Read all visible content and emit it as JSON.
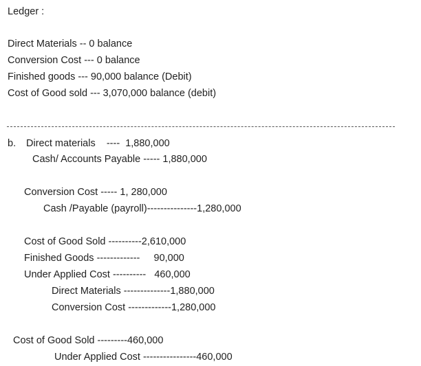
{
  "ledger": {
    "title": "Ledger :",
    "lines": [
      "Direct Materials -- 0 balance",
      "Conversion Cost --- 0 balance",
      "Finished goods --- 90,000 balance (Debit)",
      "Cost of Good sold --- 3,070,000 balance (debit)"
    ]
  },
  "separator": "-----------------------------------------------------------------------------------------------------",
  "part_b": {
    "label": "b.",
    "entries": [
      {
        "debit": "Direct materials    ----  1,880,000",
        "credit": "Cash/ Accounts Payable ----- 1,880,000"
      },
      {
        "debit": "Conversion Cost ----- 1, 280,000",
        "credit": "Cash /Payable (payroll)---------------1,280,000"
      }
    ],
    "compound": {
      "lines": [
        "Cost of Good Sold ----------2,610,000",
        "Finished Goods -------------     90,000",
        "Under Applied Cost ----------   460,000"
      ],
      "credits": [
        "Direct Materials --------------1,880,000",
        "Conversion Cost -------------1,280,000"
      ]
    },
    "closing": {
      "debit": "Cost of Good Sold ---------460,000",
      "credit": "Under Applied Cost ----------------460,000"
    }
  }
}
